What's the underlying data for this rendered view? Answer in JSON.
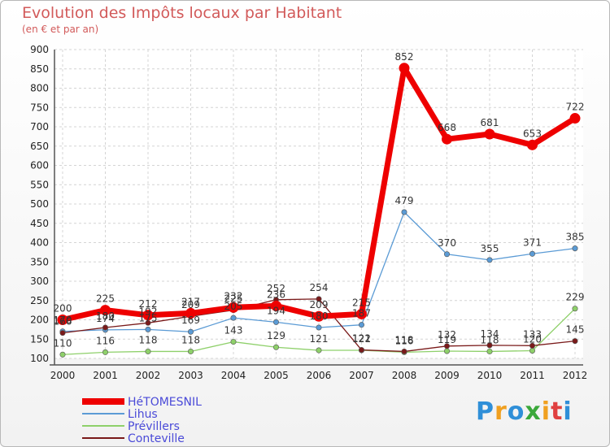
{
  "header": {
    "title": "Evolution des Impôts locaux par Habitant",
    "subtitle": "(en € et par an)"
  },
  "logo": {
    "text": "Proxiti"
  },
  "chart_data": {
    "type": "line",
    "title": "Evolution des Impôts locaux par Habitant",
    "subtitle": "(en € et par an)",
    "xlabel": "",
    "ylabel": "",
    "categories": [
      "2000",
      "2001",
      "2002",
      "2003",
      "2004",
      "2005",
      "2006",
      "2007",
      "2008",
      "2009",
      "2010",
      "2011",
      "2012"
    ],
    "ylim": [
      100,
      900
    ],
    "yticks": [
      100,
      150,
      200,
      250,
      300,
      350,
      400,
      450,
      500,
      550,
      600,
      650,
      700,
      750,
      800,
      850,
      900
    ],
    "grid": true,
    "legend_position": "bottom-left",
    "series": [
      {
        "name": "HéTOMESNIL",
        "color": "#ee0000",
        "values": [
          200,
          225,
          212,
          217,
          232,
          236,
          209,
          215,
          852,
          668,
          681,
          653,
          722
        ]
      },
      {
        "name": "Lihus",
        "color": "#5b9bd5",
        "values": [
          170,
          174,
          175,
          169,
          205,
          194,
          180,
          187,
          479,
          370,
          355,
          371,
          385
        ]
      },
      {
        "name": "Prévillers",
        "color": "#8ed06a",
        "values": [
          110,
          116,
          118,
          118,
          143,
          129,
          121,
          121,
          116,
          119,
          118,
          120,
          229
        ]
      },
      {
        "name": "Conteville",
        "color": "#7a1a1a",
        "values": [
          166,
          180,
          192,
          209,
          225,
          252,
          254,
          122,
          118,
          132,
          134,
          133,
          145
        ]
      }
    ]
  }
}
